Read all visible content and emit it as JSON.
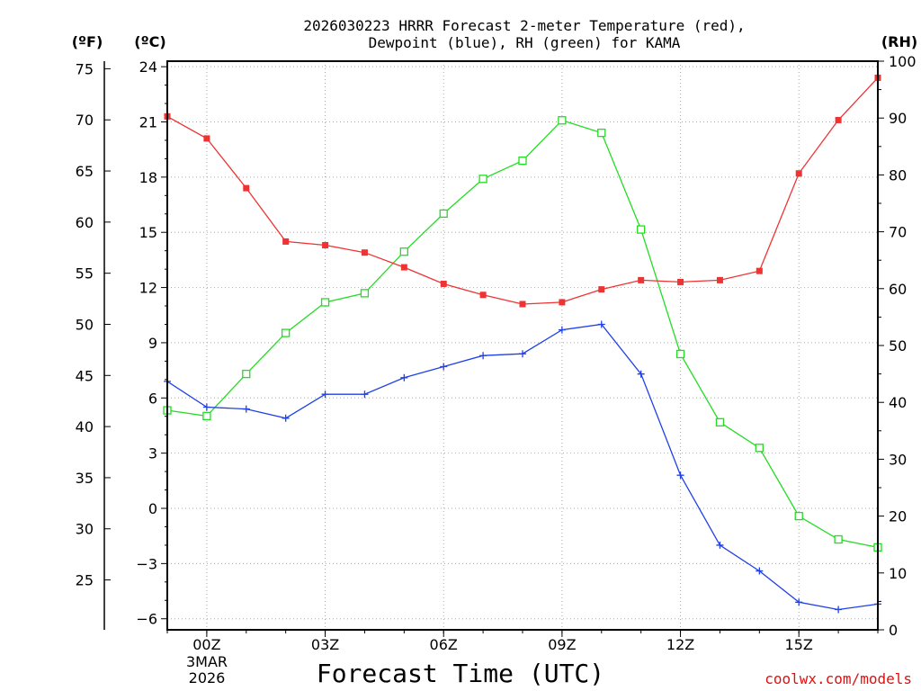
{
  "title_line1": "2026030223 HRRR Forecast 2-meter Temperature (red),",
  "title_line2": "Dewpoint (blue), RH (green) for KAMA",
  "units": {
    "fahrenheit": "(ºF)",
    "celsius": "(ºC)",
    "rh": "(RH)"
  },
  "x_title": "Forecast Time (UTC)",
  "credit": "coolwx.com/models",
  "date_line1": "3MAR",
  "date_line2": "2026",
  "colors": {
    "temperature": "#ee3333",
    "dewpoint": "#2040e8",
    "rh": "#22dd22"
  },
  "chart_data": {
    "type": "line",
    "title": "2026030223 HRRR Forecast 2-meter Temperature (red), Dewpoint (blue), RH (green) for KAMA",
    "xlabel": "Forecast Time (UTC)",
    "x_hours": [
      -1,
      0,
      1,
      2,
      3,
      4,
      5,
      6,
      7,
      8,
      9,
      10,
      11,
      12,
      13,
      14,
      15,
      16,
      17
    ],
    "xlim": [
      -1,
      17
    ],
    "x_ticks": [
      {
        "x": 0,
        "label": "00Z"
      },
      {
        "x": 3,
        "label": "03Z"
      },
      {
        "x": 6,
        "label": "06Z"
      },
      {
        "x": 9,
        "label": "09Z"
      },
      {
        "x": 12,
        "label": "12Z"
      },
      {
        "x": 15,
        "label": "15Z"
      }
    ],
    "celsius_axis": {
      "ylim": [
        -6.6,
        24.3
      ],
      "ticks": [
        24,
        21,
        18,
        15,
        12,
        9,
        6,
        3,
        0,
        -3,
        -6
      ]
    },
    "fahrenheit_axis": {
      "ticks": [
        75,
        70,
        65,
        60,
        55,
        50,
        45,
        40,
        35,
        30,
        25
      ]
    },
    "rh_axis": {
      "ylim": [
        0,
        100
      ],
      "ticks": [
        100,
        90,
        80,
        70,
        60,
        50,
        40,
        30,
        20,
        10,
        0
      ]
    },
    "series": [
      {
        "name": "Temperature",
        "unit": "C",
        "marker": "filled-square",
        "values": [
          21.3,
          20.1,
          17.4,
          14.5,
          14.3,
          13.9,
          13.1,
          12.2,
          11.6,
          11.1,
          11.2,
          11.9,
          12.4,
          12.3,
          12.4,
          12.9,
          18.2,
          21.1,
          23.4
        ]
      },
      {
        "name": "Dewpoint",
        "unit": "C",
        "marker": "plus",
        "values": [
          6.9,
          5.5,
          5.4,
          4.9,
          6.2,
          6.2,
          7.1,
          7.7,
          8.3,
          8.4,
          9.7,
          10.0,
          7.3,
          1.8,
          -2.0,
          -3.4,
          -5.1,
          -5.5,
          -5.2
        ]
      },
      {
        "name": "RH",
        "unit": "%",
        "marker": "open-square",
        "values": [
          38.6,
          37.6,
          45.0,
          52.2,
          57.6,
          59.2,
          66.5,
          73.2,
          79.3,
          82.5,
          89.6,
          87.4,
          70.4,
          48.5,
          36.5,
          32.0,
          20.0,
          15.9,
          14.5
        ]
      }
    ]
  }
}
